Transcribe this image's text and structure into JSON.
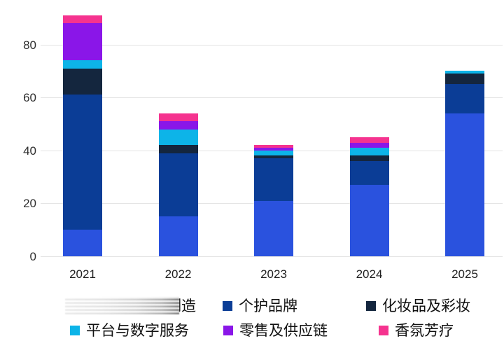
{
  "chart_data": {
    "type": "bar",
    "stacked": true,
    "title": "",
    "xlabel": "",
    "ylabel": "",
    "categories": [
      "2021",
      "2022",
      "2023",
      "2024",
      "2025"
    ],
    "series": [
      {
        "name": "制造",
        "name_obscured": true,
        "color": "#2A52DE",
        "values": [
          10,
          15,
          21,
          27,
          54
        ]
      },
      {
        "name": "个护品牌",
        "color": "#0B3D96",
        "values": [
          51,
          24,
          16,
          9,
          11
        ]
      },
      {
        "name": "化妆品及彩妆",
        "color": "#14263E",
        "values": [
          10,
          3,
          1,
          2,
          4
        ]
      },
      {
        "name": "平台与数字服务",
        "color": "#0DB4E8",
        "values": [
          3,
          6,
          2,
          3,
          1
        ]
      },
      {
        "name": "零售及供应链",
        "color": "#8A16E8",
        "values": [
          14,
          3,
          1,
          2,
          0
        ]
      },
      {
        "name": "香氛芳疗",
        "color": "#F5338F",
        "values": [
          3,
          3,
          1,
          2,
          0
        ]
      }
    ],
    "totals": [
      91,
      54,
      42,
      45,
      70
    ],
    "yticks": [
      "0",
      "20",
      "40",
      "60",
      "80"
    ],
    "ytick_values": [
      0,
      20,
      40,
      60,
      80
    ],
    "ylim": [
      0,
      95
    ],
    "grid": "horizontal",
    "legend_position": "bottom",
    "legend_note": "first legend item partially obscured by a gray motion-blur smear; only 制造 visible"
  },
  "colors": {
    "background": "#ffffff",
    "gridline": "#e4e4e4",
    "axis_text": "#2e2e2e"
  }
}
